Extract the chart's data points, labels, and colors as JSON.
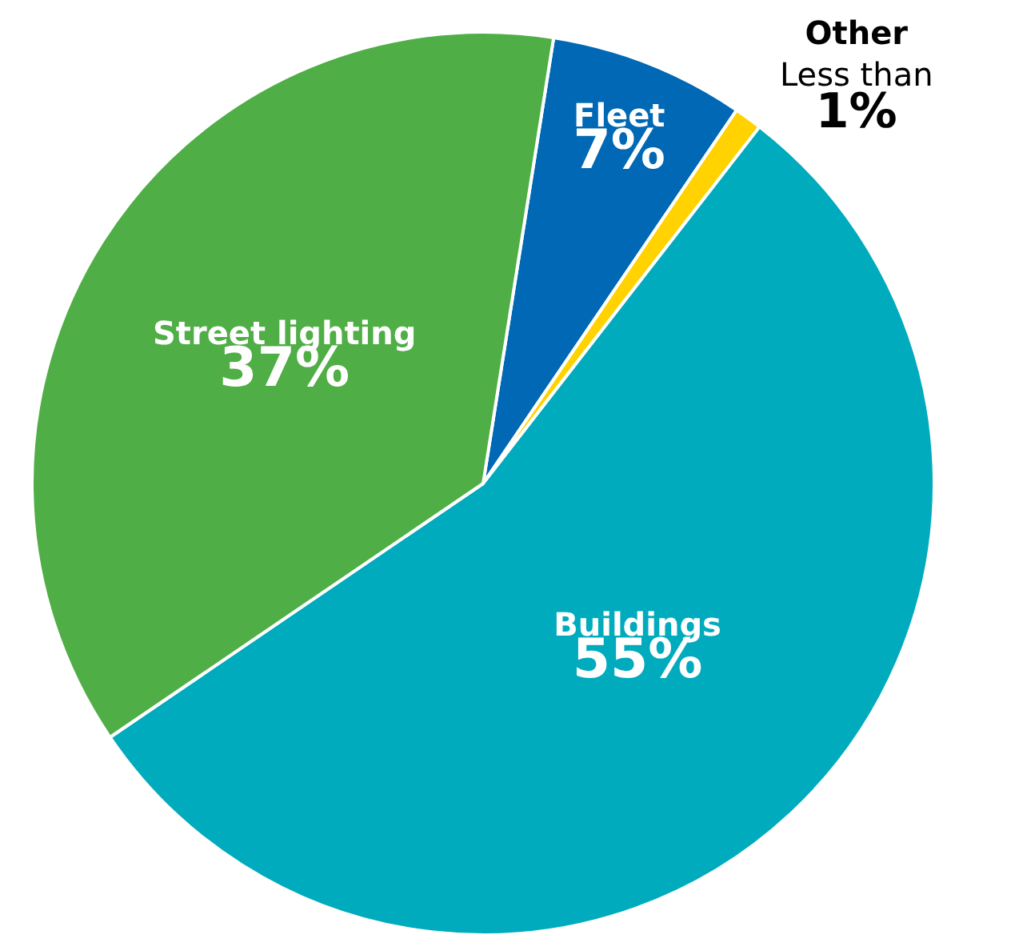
{
  "chart_data": {
    "type": "pie",
    "categories": [
      "Fleet",
      "Other",
      "Buildings",
      "Street lighting"
    ],
    "values": [
      7,
      1,
      55,
      37
    ],
    "colors": [
      "#0068b4",
      "#ffd200",
      "#00abbd",
      "#4fae45"
    ],
    "value_labels": [
      "7%",
      "Less than 1%",
      "55%",
      "37%"
    ]
  }
}
